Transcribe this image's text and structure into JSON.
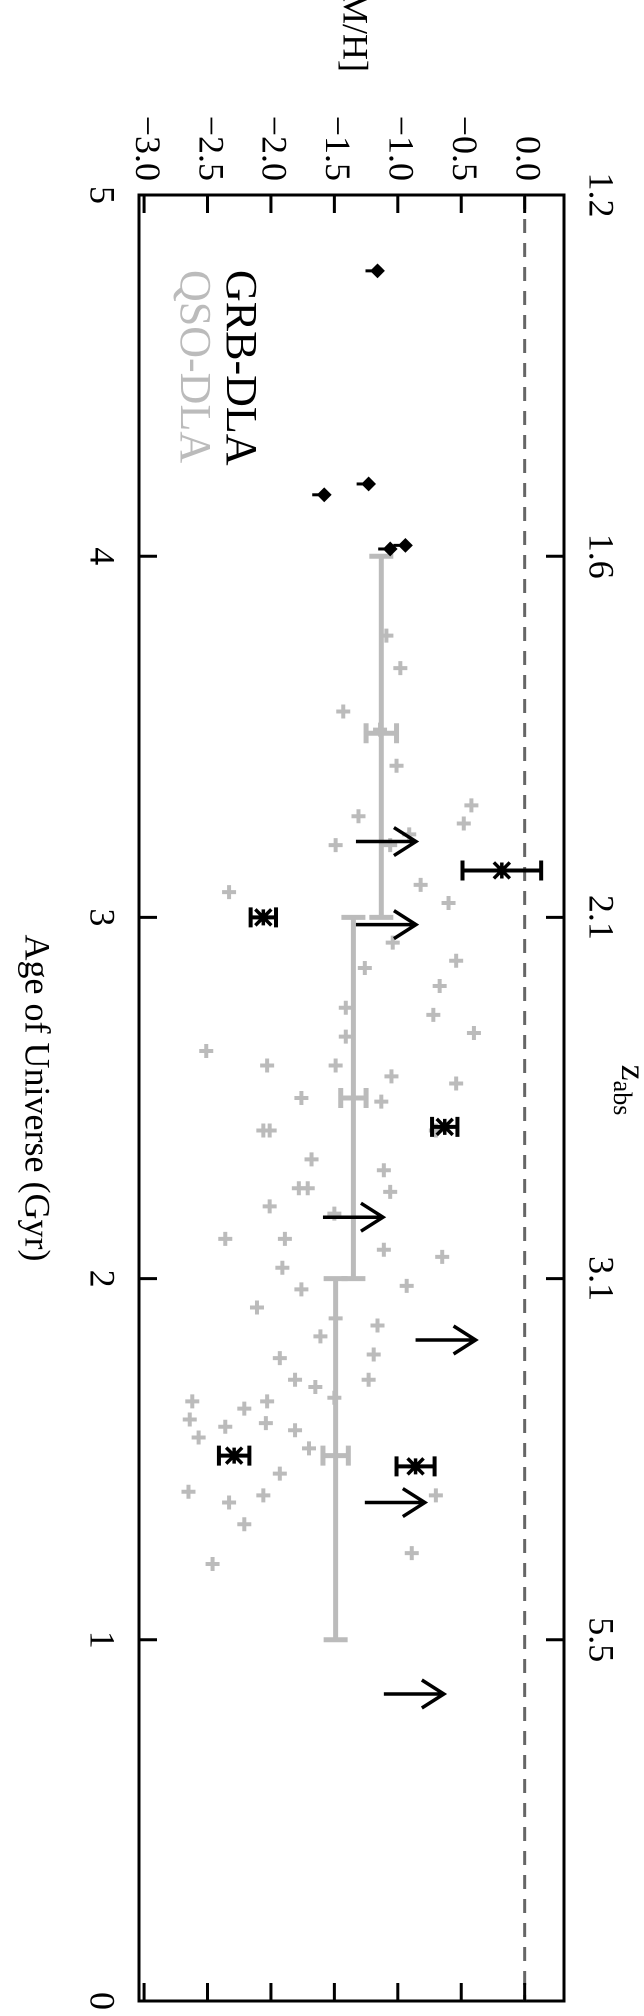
{
  "chart_data": {
    "type": "scatter",
    "xlabel": "Age of Universe (Gyr)",
    "ylabel": "[M/H]",
    "x2label": "z",
    "x2label_sub": "abs",
    "xlim": [
      5,
      0
    ],
    "xticks": [
      5,
      4,
      3,
      2,
      1,
      0
    ],
    "x2ticks": [
      {
        "value": 5,
        "label": "1.2"
      },
      {
        "value": 4,
        "label": "1.6"
      },
      {
        "value": 3,
        "label": "2.1"
      },
      {
        "value": 2,
        "label": "3.1"
      },
      {
        "value": 1,
        "label": "5.5"
      }
    ],
    "ylim": [
      -3.04,
      0.31
    ],
    "yticks": [
      {
        "value": 0,
        "label": "0.0"
      },
      {
        "value": -0.5,
        "label": "−0.5"
      },
      {
        "value": -1,
        "label": "−1.0"
      },
      {
        "value": -1.5,
        "label": "−1.5"
      },
      {
        "value": -2,
        "label": "−2.0"
      },
      {
        "value": -2.5,
        "label": "−2.5"
      },
      {
        "value": -3,
        "label": "−3.0"
      }
    ],
    "reference_line": 0,
    "legend": "lower left",
    "series": [
      {
        "name": "GRB-DLA",
        "color": "#000000",
        "marker": "asterisk",
        "x": [
          3.13,
          3.0,
          2.42,
          1.48,
          1.51
        ],
        "values": [
          -0.18,
          -2.06,
          -0.63,
          -0.86,
          -2.29
        ],
        "errors": [
          0.31,
          0.1,
          0.1,
          0.15,
          0.12
        ],
        "lower_limits": {
          "x": [
            3.21,
            2.98,
            2.17,
            1.83,
            1.38,
            0.85
          ],
          "values": [
            -1.33,
            -1.33,
            -1.59,
            -0.86,
            -1.26,
            -1.11
          ]
        },
        "upper_limits": {
          "x": [
            4.79,
            4.2,
            4.17,
            4.03,
            4.02
          ],
          "values": [
            -1.16,
            -1.23,
            -1.58,
            -0.94,
            -1.06
          ]
        }
      },
      {
        "name": "QSO-DLA",
        "color": "#bbbbbb",
        "marker": "plus",
        "x": [
          3.78,
          3.69,
          3.57,
          3.52,
          3.42,
          3.31,
          3.26,
          3.28,
          3.23,
          3.2,
          3.2,
          3.09,
          3.04,
          3.07,
          2.93,
          2.88,
          2.86,
          2.81,
          2.75,
          2.73,
          2.68,
          2.67,
          2.63,
          2.59,
          2.59,
          2.56,
          2.54,
          2.5,
          2.49,
          2.41,
          2.41,
          2.41,
          2.33,
          2.3,
          2.24,
          2.25,
          2.25,
          2.2,
          2.18,
          2.11,
          2.11,
          2.06,
          2.08,
          2.03,
          1.97,
          1.98,
          1.92,
          1.89,
          1.87,
          1.84,
          1.79,
          1.78,
          1.72,
          1.72,
          1.66,
          1.7,
          1.67,
          1.66,
          1.64,
          1.61,
          1.59,
          1.6,
          1.58,
          1.53,
          1.56,
          1.46,
          1.41,
          1.4,
          1.38,
          1.4,
          1.32,
          1.21,
          1.24
        ],
        "values": [
          -1.09,
          -0.98,
          -1.43,
          -1.14,
          -1.01,
          -0.42,
          -0.48,
          -1.31,
          -0.91,
          -1.49,
          -1.06,
          -0.82,
          -0.6,
          -2.33,
          -1.04,
          -0.54,
          -1.26,
          -0.67,
          -1.41,
          -0.72,
          -0.4,
          -1.41,
          -2.51,
          -2.03,
          -1.49,
          -1.05,
          -0.54,
          -1.76,
          -1.13,
          -2.06,
          -0.7,
          -2.01,
          -1.68,
          -1.11,
          -1.06,
          -1.78,
          -1.71,
          -2.01,
          -1.5,
          -2.36,
          -1.89,
          -0.65,
          -1.11,
          -1.91,
          -1.76,
          -0.93,
          -2.11,
          -1.49,
          -1.16,
          -1.61,
          -1.19,
          -1.93,
          -1.81,
          -1.23,
          -2.03,
          -1.65,
          -1.5,
          -2.62,
          -2.21,
          -2.64,
          -2.36,
          -2.04,
          -1.81,
          -1.7,
          -2.57,
          -1.93,
          -2.65,
          -2.06,
          -2.33,
          -0.7,
          -2.21,
          -2.46,
          -0.89
        ],
        "bins": {
          "x_start": [
            4,
            3,
            2
          ],
          "x_end": [
            3,
            2,
            1
          ],
          "centers": [
            3.51,
            2.5,
            1.51
          ],
          "values": [
            -1.13,
            -1.35,
            -1.49
          ],
          "errors": [
            0.12,
            0.1,
            0.1
          ]
        }
      }
    ]
  }
}
